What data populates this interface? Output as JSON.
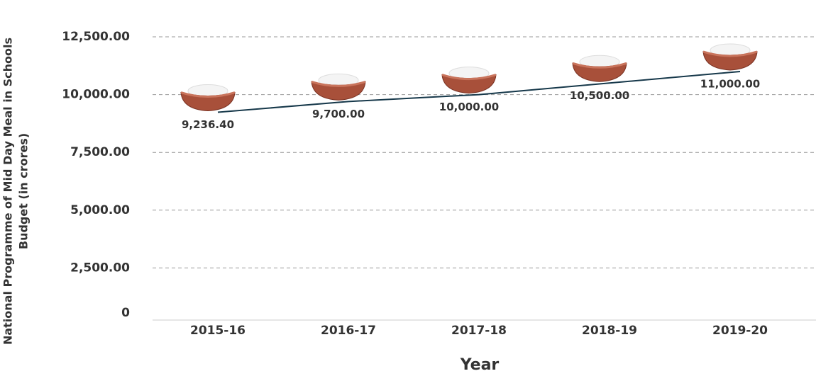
{
  "chart_data": {
    "type": "line",
    "ylabel": [
      "National Programme of Mid Day Meal in Schools",
      "Budget (in crores)"
    ],
    "xlabel": "Year",
    "categories": [
      "2015-16",
      "2016-17",
      "2017-18",
      "2018-19",
      "2019-20"
    ],
    "values": [
      9236.4,
      9700,
      10000,
      10500,
      11000
    ],
    "value_labels": [
      "9,236.40",
      "9,700.00",
      "10,000.00",
      "10,500.00",
      "11,000.00"
    ],
    "color": "#16384a",
    "ylim": [
      0,
      12500
    ],
    "yticks": [
      0,
      {
        "value": 2500,
        "label": "2,500.00"
      },
      {
        "value": 5000,
        "label": "5,000.00"
      },
      {
        "value": 7500,
        "label": "7,500.00"
      },
      {
        "value": 10000,
        "label": "10,000.00"
      },
      {
        "value": 12500,
        "label": "12,500.00"
      }
    ],
    "grid": true
  }
}
